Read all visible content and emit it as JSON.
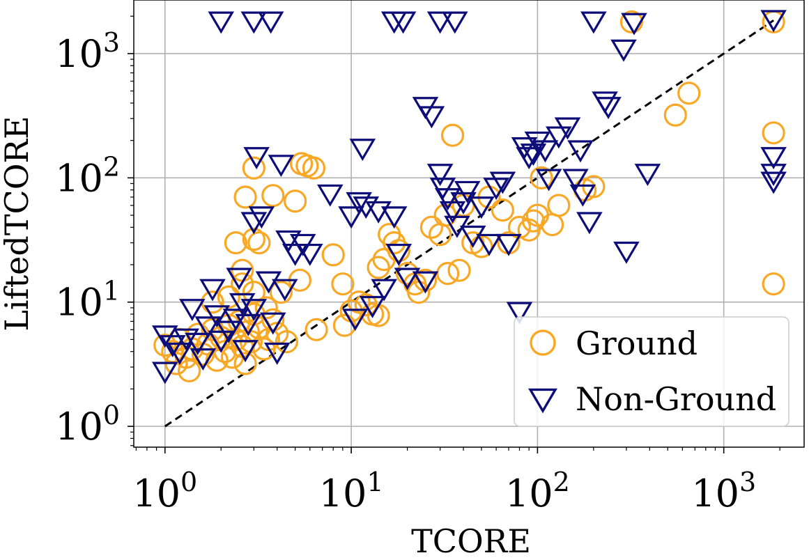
{
  "chart_data": {
    "type": "scatter",
    "title": "",
    "xlabel": "TCORE",
    "ylabel": "LiftedTCORE",
    "xscale": "log",
    "yscale": "log",
    "xlim": [
      0.68,
      2700
    ],
    "ylim": [
      0.68,
      2700
    ],
    "xticks": [
      {
        "value": 1,
        "base": "10",
        "exp": "0"
      },
      {
        "value": 10,
        "base": "10",
        "exp": "1"
      },
      {
        "value": 100,
        "base": "10",
        "exp": "2"
      },
      {
        "value": 1000,
        "base": "10",
        "exp": "3"
      }
    ],
    "yticks": [
      {
        "value": 1,
        "base": "10",
        "exp": "0"
      },
      {
        "value": 10,
        "base": "10",
        "exp": "1"
      },
      {
        "value": 100,
        "base": "10",
        "exp": "2"
      },
      {
        "value": 1000,
        "base": "10",
        "exp": "3"
      }
    ],
    "grid": true,
    "legend_position": "bottom-right",
    "reference_line": "y = x (dashed)",
    "series": [
      {
        "name": "Ground",
        "marker": "circle",
        "color": "#F9A825",
        "points": [
          [
            1.0,
            4.5
          ],
          [
            1.1,
            4.0
          ],
          [
            1.15,
            3.2
          ],
          [
            1.2,
            5.0
          ],
          [
            1.3,
            3.6
          ],
          [
            1.35,
            2.8
          ],
          [
            1.4,
            4.2
          ],
          [
            1.5,
            5.5
          ],
          [
            1.6,
            3.8
          ],
          [
            1.7,
            4.6
          ],
          [
            1.8,
            6.0
          ],
          [
            1.9,
            3.4
          ],
          [
            2.0,
            5.2
          ],
          [
            2.1,
            4.0
          ],
          [
            2.2,
            6.5
          ],
          [
            2.3,
            3.6
          ],
          [
            2.4,
            5.0
          ],
          [
            2.5,
            7.0
          ],
          [
            2.6,
            4.4
          ],
          [
            2.7,
            3.2
          ],
          [
            2.8,
            5.8
          ],
          [
            2.9,
            4.8
          ],
          [
            3.0,
            8.0
          ],
          [
            3.2,
            6.2
          ],
          [
            3.4,
            4.2
          ],
          [
            3.6,
            5.0
          ],
          [
            3.8,
            7.2
          ],
          [
            4.0,
            5.6
          ],
          [
            4.5,
            4.8
          ],
          [
            1.8,
            10.0
          ],
          [
            2.2,
            11.0
          ],
          [
            2.6,
            14.0
          ],
          [
            3.0,
            12.0
          ],
          [
            3.5,
            9.0
          ],
          [
            4.2,
            12.0
          ],
          [
            2.6,
            18.0
          ],
          [
            2.4,
            30.0
          ],
          [
            3.0,
            32.0
          ],
          [
            3.2,
            30.0
          ],
          [
            2.7,
            70.0
          ],
          [
            3.0,
            120.0
          ],
          [
            3.8,
            72.0
          ],
          [
            5.0,
            65.0
          ],
          [
            5.4,
            130.0
          ],
          [
            5.8,
            125.0
          ],
          [
            6.3,
            120.0
          ],
          [
            5.3,
            15.0
          ],
          [
            6.5,
            6.0
          ],
          [
            8.0,
            24.0
          ],
          [
            9.0,
            14.0
          ],
          [
            9.2,
            6.5
          ],
          [
            10.0,
            8.5
          ],
          [
            11.0,
            10.0
          ],
          [
            12.0,
            9.5
          ],
          [
            13.0,
            8.0
          ],
          [
            14.0,
            7.8
          ],
          [
            14.0,
            19.0
          ],
          [
            15.0,
            22.0
          ],
          [
            16.0,
            35.0
          ],
          [
            17.0,
            30.0
          ],
          [
            18.0,
            26.0
          ],
          [
            20.0,
            17.0
          ],
          [
            22.0,
            14.0
          ],
          [
            23.0,
            12.0
          ],
          [
            25.0,
            15.0
          ],
          [
            27.0,
            40.0
          ],
          [
            30.0,
            35.0
          ],
          [
            32.0,
            50.0
          ],
          [
            33.0,
            17.0
          ],
          [
            35.0,
            220.0
          ],
          [
            38.0,
            18.0
          ],
          [
            40.0,
            60.0
          ],
          [
            45.0,
            30.0
          ],
          [
            50.0,
            28.0
          ],
          [
            55.0,
            70.0
          ],
          [
            65.0,
            55.0
          ],
          [
            70.0,
            30.0
          ],
          [
            80.0,
            40.0
          ],
          [
            90.0,
            38.0
          ],
          [
            95.0,
            45.0
          ],
          [
            100.0,
            50.0
          ],
          [
            105.0,
            100.0
          ],
          [
            120.0,
            42.0
          ],
          [
            130.0,
            60.0
          ],
          [
            180.0,
            80.0
          ],
          [
            200.0,
            85.0
          ],
          [
            320.0,
            1800.0
          ],
          [
            550.0,
            320.0
          ],
          [
            650.0,
            480.0
          ],
          [
            1850.0,
            1800.0
          ],
          [
            1850.0,
            230.0
          ],
          [
            1850.0,
            14.0
          ]
        ]
      },
      {
        "name": "Non-Ground",
        "marker": "triangle_down",
        "color": "#0D0D7A",
        "points": [
          [
            1.0,
            2.8
          ],
          [
            1.0,
            5.5
          ],
          [
            1.1,
            4.6
          ],
          [
            1.2,
            4.0
          ],
          [
            1.3,
            5.2
          ],
          [
            1.4,
            9.0
          ],
          [
            1.5,
            4.8
          ],
          [
            1.6,
            3.6
          ],
          [
            1.7,
            6.5
          ],
          [
            1.8,
            13.0
          ],
          [
            1.9,
            8.0
          ],
          [
            2.0,
            5.0
          ],
          [
            2.2,
            6.0
          ],
          [
            2.4,
            7.5
          ],
          [
            2.5,
            16.0
          ],
          [
            2.6,
            10.0
          ],
          [
            2.7,
            4.2
          ],
          [
            2.8,
            6.8
          ],
          [
            3.0,
            9.0
          ],
          [
            3.0,
            45.0
          ],
          [
            3.1,
            150.0
          ],
          [
            3.3,
            50.0
          ],
          [
            3.6,
            15.0
          ],
          [
            3.8,
            7.0
          ],
          [
            4.0,
            4.0
          ],
          [
            4.2,
            130.0
          ],
          [
            4.4,
            13.0
          ],
          [
            4.6,
            32.0
          ],
          [
            5.0,
            25.0
          ],
          [
            5.5,
            30.0
          ],
          [
            6.0,
            25.0
          ],
          [
            7.7,
            75.0
          ],
          [
            10.0,
            50.0
          ],
          [
            10.5,
            7.5
          ],
          [
            11.0,
            65.0
          ],
          [
            11.5,
            175.0
          ],
          [
            12.0,
            60.0
          ],
          [
            13.0,
            9.5
          ],
          [
            14.0,
            55.0
          ],
          [
            15.0,
            13.0
          ],
          [
            17.0,
            50.0
          ],
          [
            18.0,
            25.0
          ],
          [
            20.0,
            16.0
          ],
          [
            25.0,
            15.0
          ],
          [
            30.0,
            110.0
          ],
          [
            31.0,
            85.0
          ],
          [
            33.0,
            70.0
          ],
          [
            35.0,
            55.0
          ],
          [
            37.0,
            42.0
          ],
          [
            40.0,
            65.0
          ],
          [
            42.0,
            80.0
          ],
          [
            45.0,
            35.0
          ],
          [
            50.0,
            60.0
          ],
          [
            55.0,
            30.0
          ],
          [
            60.0,
            85.0
          ],
          [
            65.0,
            95.0
          ],
          [
            70.0,
            30.0
          ],
          [
            80.0,
            8.5
          ],
          [
            85.0,
            180.0
          ],
          [
            90.0,
            150.0
          ],
          [
            95.0,
            160.0
          ],
          [
            100.0,
            200.0
          ],
          [
            110.0,
            170.0
          ],
          [
            115.0,
            100.0
          ],
          [
            130.0,
            220.0
          ],
          [
            145.0,
            260.0
          ],
          [
            160.0,
            100.0
          ],
          [
            170.0,
            170.0
          ],
          [
            175.0,
            75.0
          ],
          [
            190.0,
            45.0
          ],
          [
            230.0,
            420.0
          ],
          [
            240.0,
            380.0
          ],
          [
            290.0,
            1100.0
          ],
          [
            300.0,
            26.0
          ],
          [
            330.0,
            1800.0
          ],
          [
            390.0,
            110.0
          ],
          [
            1850.0,
            1900.0
          ],
          [
            1850.0,
            150.0
          ],
          [
            1850.0,
            110.0
          ],
          [
            1850.0,
            95.0
          ],
          [
            2.0,
            1850.0
          ],
          [
            3.0,
            1850.0
          ],
          [
            3.7,
            1850.0
          ],
          [
            17.0,
            1850.0
          ],
          [
            19.0,
            1850.0
          ],
          [
            30.0,
            1850.0
          ],
          [
            36.0,
            1850.0
          ],
          [
            200.0,
            1850.0
          ],
          [
            25.0,
            380.0
          ],
          [
            27.0,
            320.0
          ]
        ]
      }
    ]
  }
}
